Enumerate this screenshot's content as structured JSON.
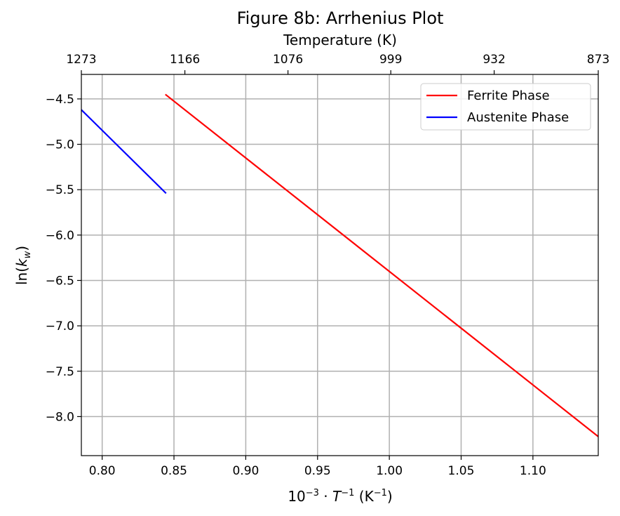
{
  "chart_data": {
    "type": "line",
    "title": "Figure 8b: Arrhenius Plot",
    "xlabel": {
      "base": "10",
      "exp1": "−3",
      "dot": " · ",
      "var": "T",
      "exp2": "−1",
      "unit_open": " (K",
      "unit_exp": "−1",
      "unit_close": ")"
    },
    "ylabel": {
      "fn_open": "ln(",
      "var": "k",
      "sub": "w",
      "fn_close": ")"
    },
    "top_xlabel": "Temperature (K)",
    "xlim": [
      0.7855,
      1.1455
    ],
    "ylim": [
      -8.43,
      -4.23
    ],
    "x_ticks": [
      {
        "value": 0.8,
        "label": "0.80"
      },
      {
        "value": 0.85,
        "label": "0.85"
      },
      {
        "value": 0.9,
        "label": "0.90"
      },
      {
        "value": 0.95,
        "label": "0.95"
      },
      {
        "value": 1.0,
        "label": "1.00"
      },
      {
        "value": 1.05,
        "label": "1.05"
      },
      {
        "value": 1.1,
        "label": "1.10"
      }
    ],
    "y_ticks": [
      {
        "value": -4.5,
        "label": "−4.5"
      },
      {
        "value": -5.0,
        "label": "−5.0"
      },
      {
        "value": -5.5,
        "label": "−5.5"
      },
      {
        "value": -6.0,
        "label": "−6.0"
      },
      {
        "value": -6.5,
        "label": "−6.5"
      },
      {
        "value": -7.0,
        "label": "−7.0"
      },
      {
        "value": -7.5,
        "label": "−7.5"
      },
      {
        "value": -8.0,
        "label": "−8.0"
      }
    ],
    "top_ticks": [
      {
        "value": 0.7855,
        "label": "1273"
      },
      {
        "value": 0.8576,
        "label": "1166"
      },
      {
        "value": 0.9294,
        "label": "1076"
      },
      {
        "value": 1.001,
        "label": "999"
      },
      {
        "value": 1.073,
        "label": "932"
      },
      {
        "value": 1.1455,
        "label": "873"
      }
    ],
    "grid": true,
    "legend_position": "top-right",
    "series": [
      {
        "name": "Ferrite Phase",
        "color": "#ff0000",
        "x": [
          0.844,
          1.1455
        ],
        "y": [
          -4.45,
          -8.22
        ]
      },
      {
        "name": "Austenite Phase",
        "color": "#0000ff",
        "x": [
          0.7855,
          0.8445
        ],
        "y": [
          -4.62,
          -5.54
        ]
      }
    ]
  }
}
